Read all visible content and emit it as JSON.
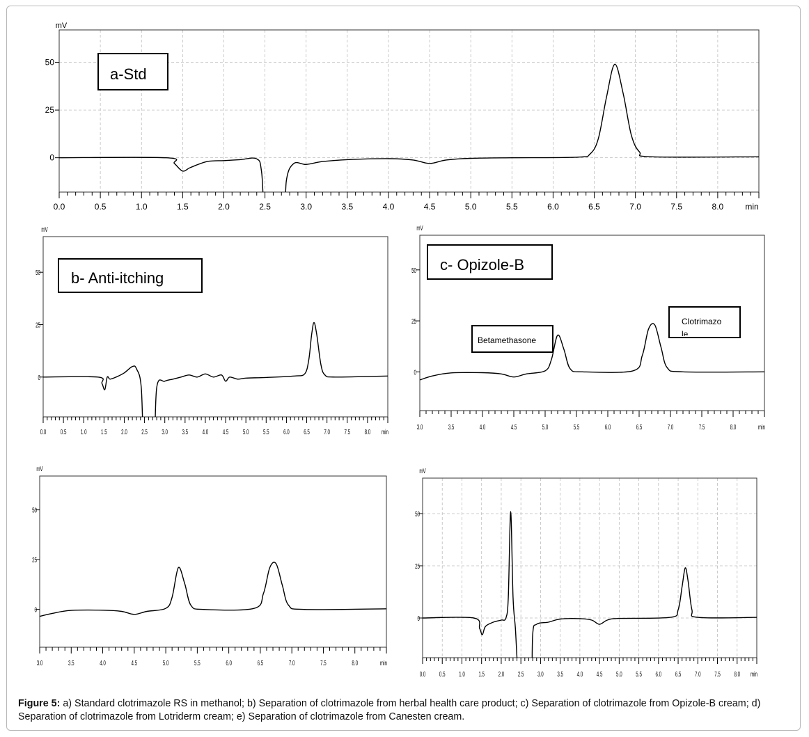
{
  "caption": {
    "label": "Figure 5:",
    "text": " a) Standard clotrimazole RS in methanol; b) Separation of clotrimazole from herbal health care product; c) Separation of clotrimazole from Opizole-B cream; d) Separation of clotrimazole from Lotriderm cream; e) Separation of clotrimazole from Canesten cream."
  },
  "chart_data": [
    {
      "id": "a",
      "type": "line",
      "unit_y": "mV",
      "unit_x": "min",
      "xlim": [
        0,
        8.5
      ],
      "ylim": [
        -18,
        67
      ],
      "x_ticks": [
        "0.0",
        "0.5",
        "1.0",
        "1.5",
        "2.0",
        "2.5",
        "3.0",
        "3.5",
        "4.0",
        "4.5",
        "5.0",
        "5.5",
        "6.0",
        "6.5",
        "7.0",
        "7.5",
        "8.0"
      ],
      "y_ticks": [
        "0",
        "25",
        "50"
      ],
      "grid": true,
      "annotations": [
        "a-Std"
      ],
      "series": [
        {
          "points": [
            [
              0,
              0
            ],
            [
              1.3,
              0
            ],
            [
              1.4,
              -3
            ],
            [
              1.5,
              -7
            ],
            [
              1.6,
              -5
            ],
            [
              1.8,
              -2
            ],
            [
              2.0,
              -1.5
            ],
            [
              2.2,
              -1
            ],
            [
              2.4,
              -0.6
            ],
            [
              2.46,
              -8
            ],
            [
              2.52,
              -40
            ],
            [
              2.72,
              -40
            ],
            [
              2.76,
              -12
            ],
            [
              2.85,
              -3
            ],
            [
              3.0,
              -3.5
            ],
            [
              3.2,
              -2
            ],
            [
              3.5,
              -1
            ],
            [
              4.0,
              -0.5
            ],
            [
              4.3,
              -1.2
            ],
            [
              4.5,
              -3
            ],
            [
              4.7,
              -1.2
            ],
            [
              5.0,
              -0.3
            ],
            [
              5.5,
              0
            ],
            [
              6.3,
              0.3
            ],
            [
              6.45,
              2
            ],
            [
              6.55,
              10
            ],
            [
              6.65,
              32
            ],
            [
              6.75,
              49
            ],
            [
              6.85,
              34
            ],
            [
              6.95,
              12
            ],
            [
              7.05,
              3
            ],
            [
              7.2,
              0.5
            ],
            [
              8.5,
              0.5
            ]
          ]
        }
      ]
    },
    {
      "id": "b",
      "type": "line",
      "unit_y": "mV",
      "unit_x": "min",
      "xlim": [
        0,
        8.5
      ],
      "ylim": [
        -19,
        67
      ],
      "x_ticks": [
        "0.0",
        "0.5",
        "1.0",
        "1.5",
        "2.0",
        "2.5",
        "3.0",
        "3.5",
        "4.0",
        "4.5",
        "5.0",
        "5.5",
        "6.0",
        "6.5",
        "7.0",
        "7.5",
        "8.0"
      ],
      "y_ticks": [
        "0",
        "25",
        "50"
      ],
      "grid": false,
      "annotations": [
        "b- Anti-itching"
      ],
      "series": [
        {
          "points": [
            [
              0,
              0
            ],
            [
              1.35,
              0
            ],
            [
              1.45,
              -3
            ],
            [
              1.52,
              -6
            ],
            [
              1.58,
              0
            ],
            [
              1.65,
              -1
            ],
            [
              1.8,
              0
            ],
            [
              2.0,
              2
            ],
            [
              2.2,
              5
            ],
            [
              2.3,
              4
            ],
            [
              2.42,
              -5
            ],
            [
              2.5,
              -40
            ],
            [
              2.72,
              -40
            ],
            [
              2.8,
              -5
            ],
            [
              3.0,
              -2
            ],
            [
              3.2,
              -1
            ],
            [
              3.4,
              0
            ],
            [
              3.6,
              1
            ],
            [
              3.8,
              0
            ],
            [
              4.0,
              1.5
            ],
            [
              4.2,
              0
            ],
            [
              4.4,
              1
            ],
            [
              4.5,
              -2
            ],
            [
              4.6,
              0
            ],
            [
              4.8,
              -1
            ],
            [
              5.0,
              -0.5
            ],
            [
              5.5,
              -0.2
            ],
            [
              6.2,
              0.5
            ],
            [
              6.45,
              1.5
            ],
            [
              6.55,
              8
            ],
            [
              6.62,
              20
            ],
            [
              6.68,
              26
            ],
            [
              6.75,
              20
            ],
            [
              6.85,
              6
            ],
            [
              6.95,
              1
            ],
            [
              7.2,
              0
            ],
            [
              8.5,
              0.5
            ]
          ]
        }
      ]
    },
    {
      "id": "c",
      "type": "line",
      "unit_y": "mV",
      "unit_x": "min",
      "xlim": [
        3.0,
        8.5
      ],
      "ylim": [
        -19,
        67
      ],
      "x_ticks": [
        "3.0",
        "3.5",
        "4.0",
        "4.5",
        "5.0",
        "5.5",
        "6.0",
        "6.5",
        "7.0",
        "7.5",
        "8.0"
      ],
      "y_ticks": [
        "0",
        "25",
        "50"
      ],
      "grid": false,
      "annotations": [
        "c- Opizole-B",
        "Betamethasone",
        "Clotrimazo le"
      ],
      "series": [
        {
          "points": [
            [
              3.0,
              -4
            ],
            [
              3.2,
              -2
            ],
            [
              3.5,
              -0.5
            ],
            [
              4.0,
              -0.4
            ],
            [
              4.3,
              -1
            ],
            [
              4.5,
              -2.5
            ],
            [
              4.7,
              -1
            ],
            [
              5.0,
              0.5
            ],
            [
              5.1,
              6
            ],
            [
              5.2,
              18
            ],
            [
              5.3,
              11
            ],
            [
              5.4,
              1.5
            ],
            [
              5.6,
              0
            ],
            [
              6.4,
              0.5
            ],
            [
              6.55,
              8
            ],
            [
              6.65,
              21
            ],
            [
              6.75,
              23
            ],
            [
              6.85,
              12
            ],
            [
              6.95,
              2
            ],
            [
              7.2,
              0
            ],
            [
              8.5,
              0
            ]
          ]
        }
      ]
    },
    {
      "id": "d",
      "type": "line",
      "unit_y": "mV",
      "unit_x": "min",
      "xlim": [
        3.0,
        8.5
      ],
      "ylim": [
        -19,
        67
      ],
      "x_ticks": [
        "3.0",
        "3.5",
        "4.0",
        "4.5",
        "5.0",
        "5.5",
        "6.0",
        "6.5",
        "7.0",
        "7.5",
        "8.0"
      ],
      "y_ticks": [
        "0",
        "25",
        "50"
      ],
      "grid": false,
      "annotations": [],
      "series": [
        {
          "points": [
            [
              3.0,
              -3.5
            ],
            [
              3.2,
              -2
            ],
            [
              3.5,
              -0.5
            ],
            [
              4.0,
              -0.4
            ],
            [
              4.3,
              -1
            ],
            [
              4.5,
              -2.5
            ],
            [
              4.7,
              -1
            ],
            [
              5.0,
              0.5
            ],
            [
              5.1,
              6
            ],
            [
              5.2,
              21
            ],
            [
              5.3,
              13
            ],
            [
              5.4,
              2
            ],
            [
              5.6,
              0
            ],
            [
              6.4,
              0.5
            ],
            [
              6.55,
              8
            ],
            [
              6.65,
              21
            ],
            [
              6.75,
              23
            ],
            [
              6.85,
              12
            ],
            [
              6.95,
              2
            ],
            [
              7.2,
              0
            ],
            [
              8.5,
              0.3
            ]
          ]
        }
      ]
    },
    {
      "id": "e",
      "type": "line",
      "unit_y": "mV",
      "unit_x": "min",
      "xlim": [
        0,
        8.5
      ],
      "ylim": [
        -19,
        67
      ],
      "x_ticks": [
        "0.0",
        "0.5",
        "1.0",
        "1.5",
        "2.0",
        "2.5",
        "3.0",
        "3.5",
        "4.0",
        "4.5",
        "5.0",
        "5.5",
        "6.0",
        "6.5",
        "7.0",
        "7.5",
        "8.0"
      ],
      "y_ticks": [
        "0",
        "25",
        "50"
      ],
      "grid": true,
      "annotations": [],
      "series": [
        {
          "points": [
            [
              0,
              0
            ],
            [
              1.3,
              0
            ],
            [
              1.45,
              -5
            ],
            [
              1.52,
              -8
            ],
            [
              1.6,
              -4
            ],
            [
              1.8,
              -2
            ],
            [
              2.0,
              -1
            ],
            [
              2.12,
              0
            ],
            [
              2.18,
              10
            ],
            [
              2.24,
              51
            ],
            [
              2.3,
              10
            ],
            [
              2.36,
              -5
            ],
            [
              2.42,
              -25
            ],
            [
              2.5,
              -40
            ],
            [
              2.75,
              -40
            ],
            [
              2.8,
              -8
            ],
            [
              2.9,
              -3
            ],
            [
              3.2,
              -2
            ],
            [
              3.5,
              -0.5
            ],
            [
              4.0,
              -0.3
            ],
            [
              4.3,
              -1
            ],
            [
              4.5,
              -3
            ],
            [
              4.7,
              -1
            ],
            [
              5.0,
              -0.2
            ],
            [
              6.3,
              0.3
            ],
            [
              6.5,
              4
            ],
            [
              6.6,
              15
            ],
            [
              6.68,
              24
            ],
            [
              6.75,
              18
            ],
            [
              6.85,
              4
            ],
            [
              7.0,
              0.3
            ],
            [
              8.5,
              0.3
            ]
          ]
        }
      ]
    }
  ]
}
